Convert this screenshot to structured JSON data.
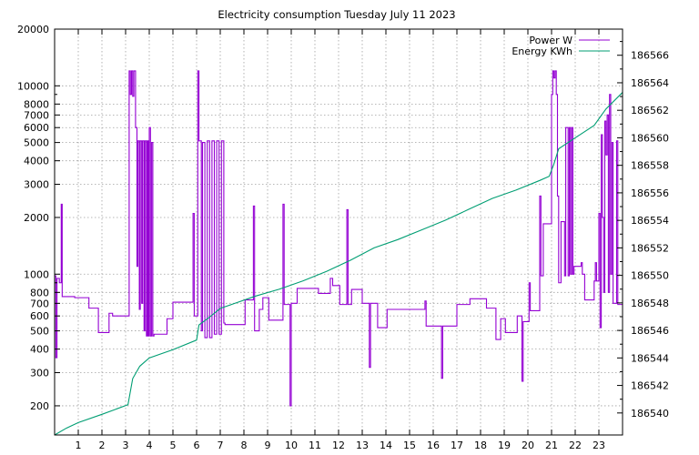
{
  "chart_data": {
    "type": "line",
    "title": "Electricity consumption Tuesday July 11 2023",
    "x": {
      "range": [
        0,
        24
      ],
      "ticks": [
        1,
        2,
        3,
        4,
        5,
        6,
        7,
        8,
        9,
        10,
        11,
        12,
        13,
        14,
        15,
        16,
        17,
        18,
        19,
        20,
        21,
        22,
        23
      ],
      "tick_labels": [
        "1",
        "2",
        "3",
        "4",
        "5",
        "6",
        "7",
        "8",
        "9",
        "10",
        "11",
        "12",
        "13",
        "14",
        "15",
        "16",
        "17",
        "18",
        "19",
        "20",
        "21",
        "22",
        "23"
      ]
    },
    "y_left": {
      "scale": "log",
      "range": [
        140,
        20000
      ],
      "ticks": [
        200,
        300,
        400,
        500,
        600,
        700,
        800,
        1000,
        2000,
        3000,
        4000,
        5000,
        6000,
        7000,
        8000,
        10000,
        20000
      ],
      "tick_labels": [
        "200",
        "300",
        "400",
        "500",
        "600",
        "700",
        "800",
        "1000",
        "2000",
        "3000",
        "4000",
        "5000",
        "6000",
        "7000",
        "8000",
        "10000",
        "20000"
      ]
    },
    "y_right": {
      "scale": "linear",
      "range": [
        186538.4,
        186567.9
      ],
      "ticks": [
        186540,
        186542,
        186544,
        186546,
        186548,
        186550,
        186552,
        186554,
        186556,
        186558,
        186560,
        186562,
        186564,
        186566
      ],
      "tick_labels": [
        "186540",
        "186542",
        "186544",
        "186546",
        "186548",
        "186550",
        "186552",
        "186554",
        "186556",
        "186558",
        "186560",
        "186562",
        "186564",
        "186566"
      ]
    },
    "grid": true,
    "legend_position": "top-right",
    "series": [
      {
        "name": "Power W",
        "axis": "left",
        "color": "#9400d3",
        "step": true,
        "points": [
          [
            0.0,
            980
          ],
          [
            0.05,
            360
          ],
          [
            0.1,
            950
          ],
          [
            0.2,
            900
          ],
          [
            0.28,
            2350
          ],
          [
            0.32,
            760
          ],
          [
            0.8,
            760
          ],
          [
            0.85,
            750
          ],
          [
            1.4,
            750
          ],
          [
            1.45,
            660
          ],
          [
            1.8,
            660
          ],
          [
            1.85,
            490
          ],
          [
            2.25,
            490
          ],
          [
            2.3,
            620
          ],
          [
            2.45,
            600
          ],
          [
            3.1,
            600
          ],
          [
            3.15,
            12000
          ],
          [
            3.2,
            9000
          ],
          [
            3.25,
            12000
          ],
          [
            3.3,
            8800
          ],
          [
            3.35,
            12000
          ],
          [
            3.42,
            6000
          ],
          [
            3.48,
            1100
          ],
          [
            3.52,
            5100
          ],
          [
            3.58,
            650
          ],
          [
            3.62,
            5100
          ],
          [
            3.68,
            700
          ],
          [
            3.72,
            5100
          ],
          [
            3.78,
            500
          ],
          [
            3.82,
            5100
          ],
          [
            3.88,
            470
          ],
          [
            3.92,
            5100
          ],
          [
            3.96,
            470
          ],
          [
            4.0,
            6000
          ],
          [
            4.05,
            470
          ],
          [
            4.1,
            5000
          ],
          [
            4.15,
            470
          ],
          [
            4.2,
            480
          ],
          [
            4.7,
            480
          ],
          [
            4.75,
            580
          ],
          [
            4.95,
            580
          ],
          [
            5.0,
            710
          ],
          [
            5.8,
            710
          ],
          [
            5.85,
            2100
          ],
          [
            5.9,
            600
          ],
          [
            6.05,
            12000
          ],
          [
            6.1,
            5100
          ],
          [
            6.2,
            500
          ],
          [
            6.25,
            5000
          ],
          [
            6.35,
            460
          ],
          [
            6.45,
            5100
          ],
          [
            6.55,
            460
          ],
          [
            6.65,
            5100
          ],
          [
            6.75,
            480
          ],
          [
            6.85,
            5100
          ],
          [
            6.95,
            480
          ],
          [
            7.05,
            5100
          ],
          [
            7.15,
            550
          ],
          [
            7.2,
            540
          ],
          [
            8.0,
            540
          ],
          [
            8.05,
            730
          ],
          [
            8.35,
            730
          ],
          [
            8.4,
            2300
          ],
          [
            8.45,
            500
          ],
          [
            8.6,
            500
          ],
          [
            8.65,
            650
          ],
          [
            8.8,
            750
          ],
          [
            9.0,
            750
          ],
          [
            9.05,
            570
          ],
          [
            9.6,
            570
          ],
          [
            9.65,
            2350
          ],
          [
            9.7,
            690
          ],
          [
            9.9,
            690
          ],
          [
            9.95,
            200
          ],
          [
            10.0,
            700
          ],
          [
            10.2,
            700
          ],
          [
            10.25,
            840
          ],
          [
            11.1,
            840
          ],
          [
            11.15,
            790
          ],
          [
            11.6,
            790
          ],
          [
            11.65,
            950
          ],
          [
            11.75,
            870
          ],
          [
            12.0,
            870
          ],
          [
            12.05,
            690
          ],
          [
            12.3,
            690
          ],
          [
            12.35,
            2200
          ],
          [
            12.4,
            690
          ],
          [
            12.5,
            690
          ],
          [
            12.55,
            830
          ],
          [
            12.95,
            830
          ],
          [
            13.0,
            700
          ],
          [
            13.25,
            700
          ],
          [
            13.3,
            320
          ],
          [
            13.35,
            700
          ],
          [
            13.6,
            700
          ],
          [
            13.65,
            520
          ],
          [
            14.0,
            520
          ],
          [
            14.05,
            650
          ],
          [
            15.6,
            650
          ],
          [
            15.65,
            720
          ],
          [
            15.7,
            530
          ],
          [
            16.3,
            530
          ],
          [
            16.35,
            280
          ],
          [
            16.4,
            530
          ],
          [
            16.95,
            530
          ],
          [
            17.0,
            690
          ],
          [
            17.5,
            690
          ],
          [
            17.55,
            740
          ],
          [
            18.2,
            740
          ],
          [
            18.25,
            660
          ],
          [
            18.6,
            660
          ],
          [
            18.65,
            450
          ],
          [
            18.8,
            450
          ],
          [
            18.85,
            580
          ],
          [
            19.0,
            580
          ],
          [
            19.05,
            490
          ],
          [
            19.5,
            490
          ],
          [
            19.55,
            600
          ],
          [
            19.7,
            600
          ],
          [
            19.75,
            270
          ],
          [
            19.8,
            560
          ],
          [
            20.0,
            560
          ],
          [
            20.05,
            900
          ],
          [
            20.1,
            640
          ],
          [
            20.45,
            640
          ],
          [
            20.5,
            2600
          ],
          [
            20.55,
            980
          ],
          [
            20.65,
            1850
          ],
          [
            20.95,
            1850
          ],
          [
            21.0,
            9000
          ],
          [
            21.05,
            12000
          ],
          [
            21.1,
            11000
          ],
          [
            21.15,
            12000
          ],
          [
            21.2,
            9000
          ],
          [
            21.25,
            2600
          ],
          [
            21.3,
            900
          ],
          [
            21.4,
            1900
          ],
          [
            21.55,
            980
          ],
          [
            21.6,
            6000
          ],
          [
            21.7,
            980
          ],
          [
            21.75,
            6000
          ],
          [
            21.8,
            1000
          ],
          [
            21.85,
            6000
          ],
          [
            21.9,
            1000
          ],
          [
            21.95,
            1100
          ],
          [
            22.2,
            1100
          ],
          [
            22.25,
            1150
          ],
          [
            22.3,
            1000
          ],
          [
            22.4,
            730
          ],
          [
            22.75,
            730
          ],
          [
            22.8,
            920
          ],
          [
            22.85,
            1150
          ],
          [
            22.9,
            920
          ],
          [
            23.0,
            2100
          ],
          [
            23.05,
            520
          ],
          [
            23.1,
            5500
          ],
          [
            23.15,
            2000
          ],
          [
            23.2,
            800
          ],
          [
            23.25,
            6500
          ],
          [
            23.3,
            4300
          ],
          [
            23.35,
            7000
          ],
          [
            23.4,
            800
          ],
          [
            23.45,
            9000
          ],
          [
            23.5,
            1000
          ],
          [
            23.55,
            5000
          ],
          [
            23.6,
            700
          ],
          [
            23.7,
            700
          ],
          [
            23.75,
            5100
          ],
          [
            23.8,
            690
          ],
          [
            24.0,
            690
          ]
        ]
      },
      {
        "name": "Energy KWh",
        "axis": "right",
        "color": "#009e73",
        "step": false,
        "points": [
          [
            0.0,
            186538.4
          ],
          [
            0.5,
            186538.9
          ],
          [
            1.0,
            186539.3
          ],
          [
            2.0,
            186539.9
          ],
          [
            3.1,
            186540.6
          ],
          [
            3.3,
            186542.5
          ],
          [
            3.6,
            186543.4
          ],
          [
            4.0,
            186544.0
          ],
          [
            5.0,
            186544.6
          ],
          [
            6.0,
            186545.3
          ],
          [
            6.1,
            186546.4
          ],
          [
            6.5,
            186546.9
          ],
          [
            7.0,
            186547.6
          ],
          [
            7.5,
            186547.9
          ],
          [
            8.5,
            186548.5
          ],
          [
            9.5,
            186549.0
          ],
          [
            10.5,
            186549.6
          ],
          [
            11.5,
            186550.3
          ],
          [
            12.5,
            186551.1
          ],
          [
            13.5,
            186552.0
          ],
          [
            14.5,
            186552.6
          ],
          [
            15.5,
            186553.3
          ],
          [
            16.5,
            186554.0
          ],
          [
            17.5,
            186554.8
          ],
          [
            18.5,
            186555.6
          ],
          [
            19.5,
            186556.2
          ],
          [
            20.5,
            186556.9
          ],
          [
            20.9,
            186557.2
          ],
          [
            21.1,
            186558.1
          ],
          [
            21.3,
            186559.2
          ],
          [
            22.0,
            186560.0
          ],
          [
            22.8,
            186560.9
          ],
          [
            23.3,
            186562.1
          ],
          [
            24.0,
            186563.3
          ]
        ]
      }
    ]
  }
}
